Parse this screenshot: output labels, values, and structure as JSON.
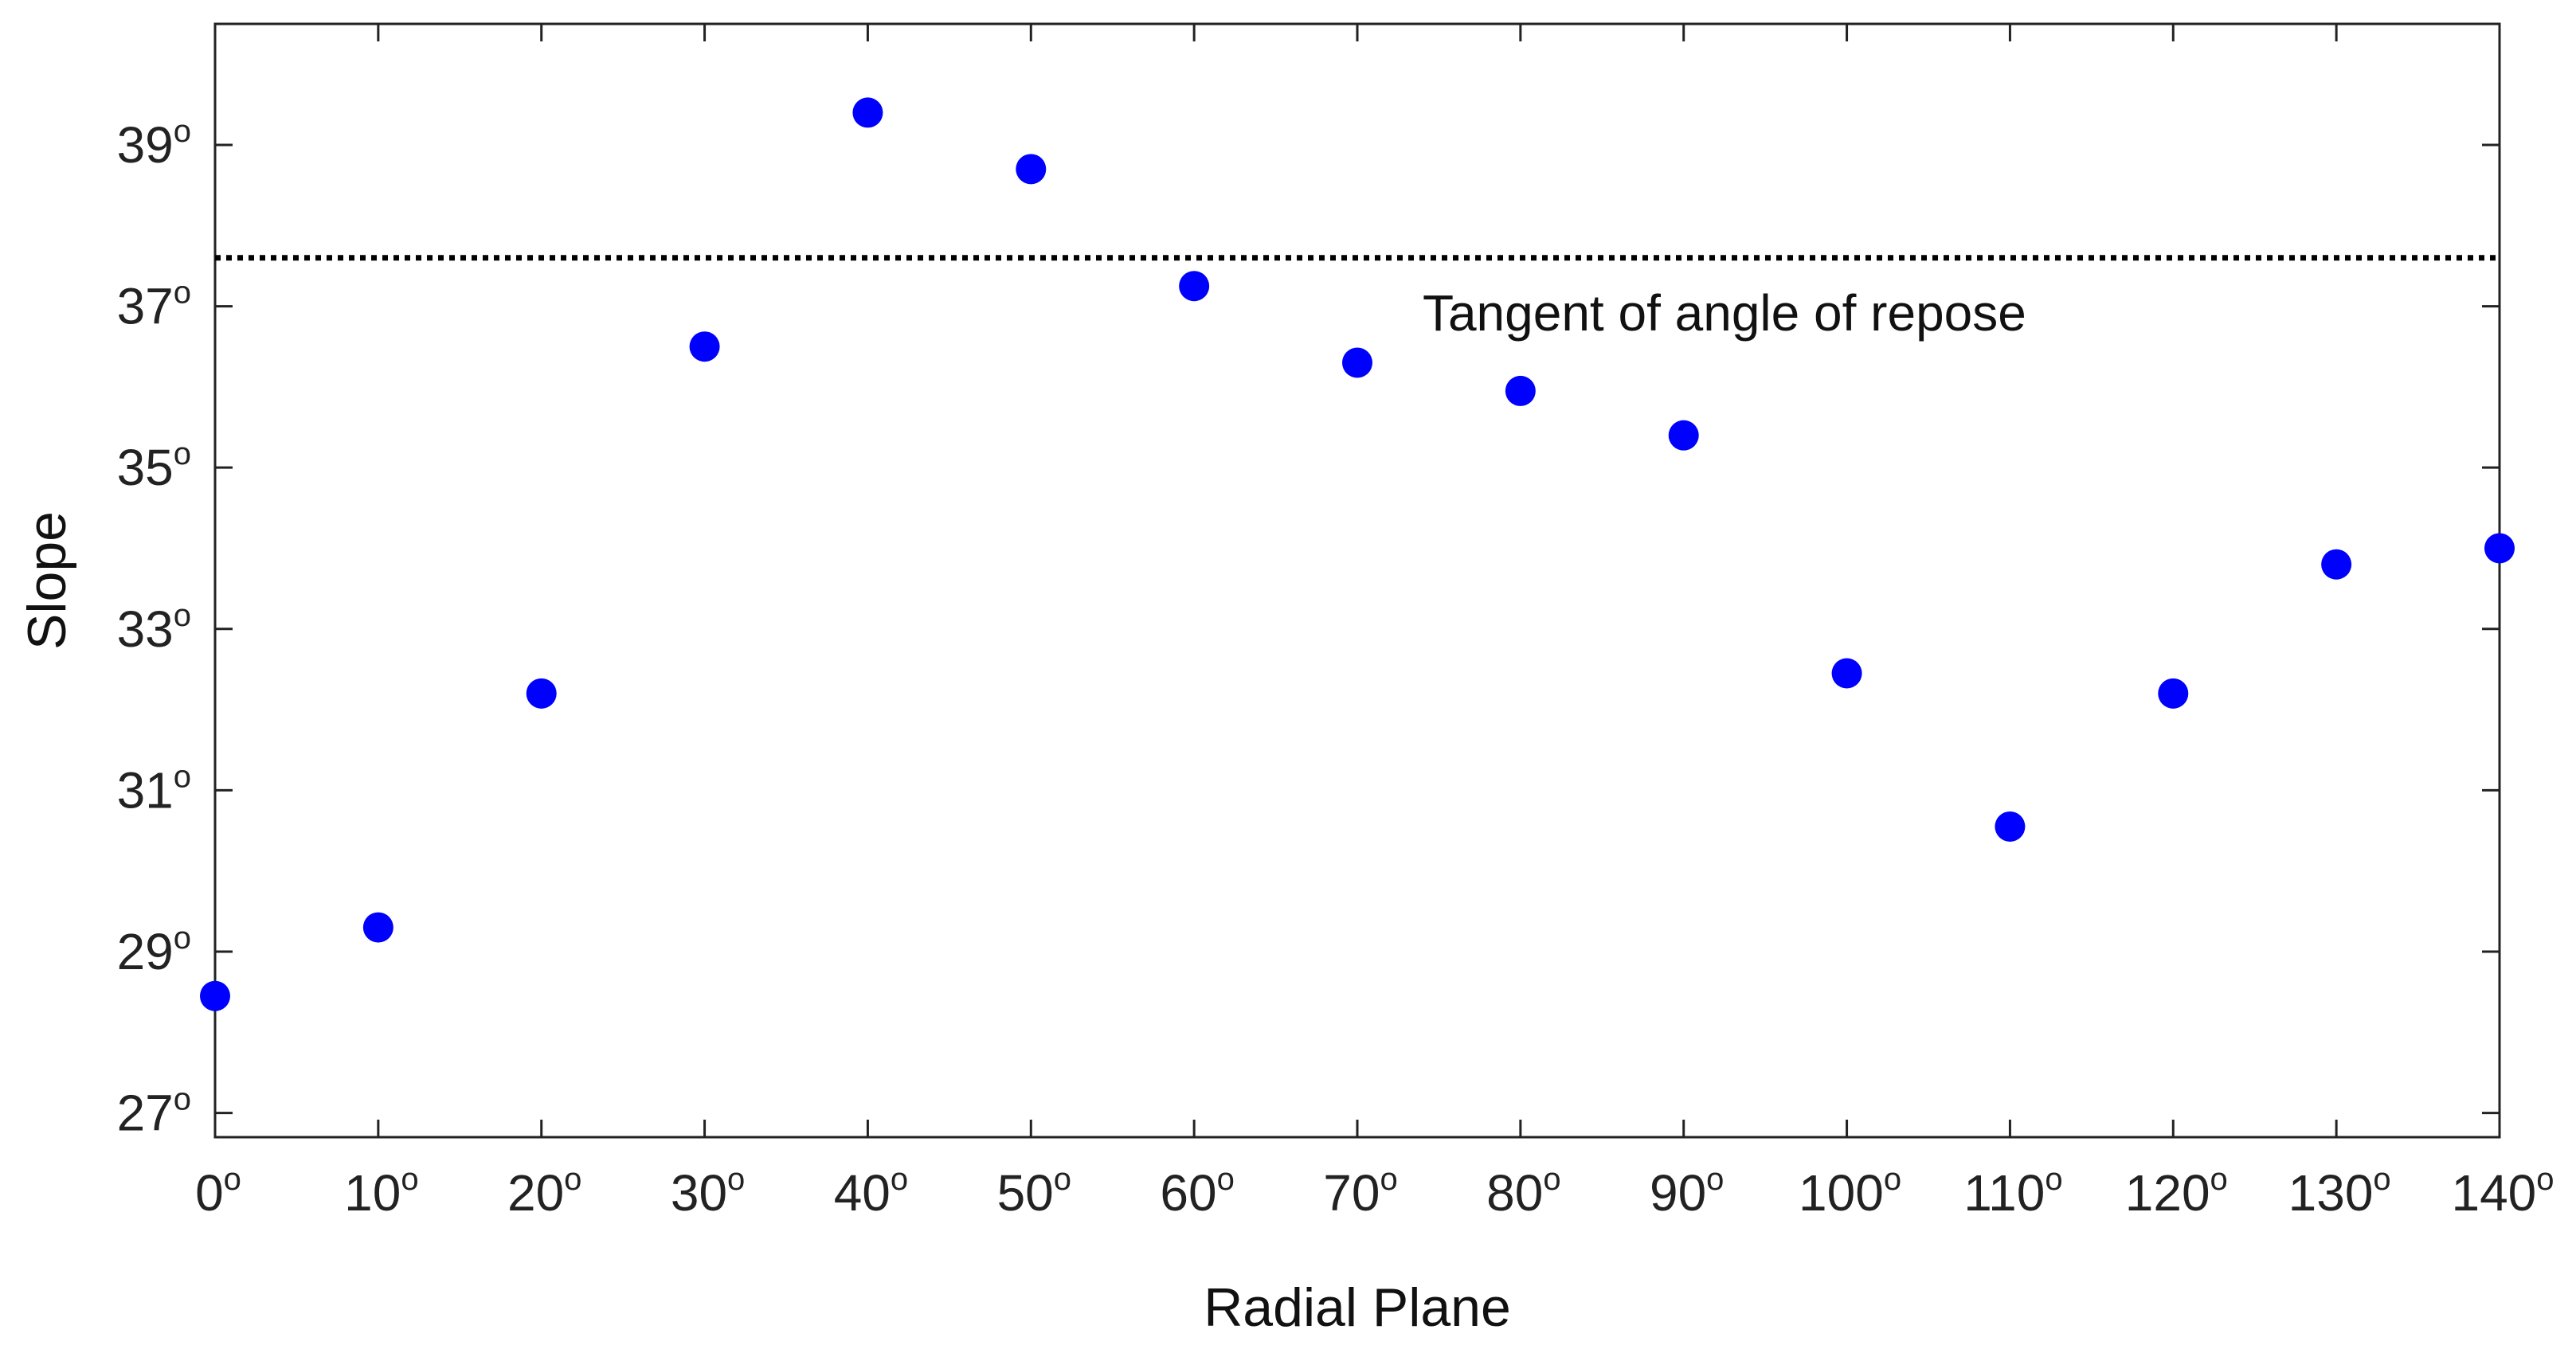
{
  "chart_data": {
    "type": "scatter",
    "xlabel": "Radial Plane",
    "ylabel": "Slope",
    "x_ticks": [
      "0",
      "10",
      "20",
      "30",
      "40",
      "50",
      "60",
      "70",
      "80",
      "90",
      "100",
      "110",
      "120",
      "130",
      "140"
    ],
    "y_ticks": [
      "27",
      "29",
      "31",
      "33",
      "35",
      "37",
      "39"
    ],
    "degree_symbol": "o",
    "xlim": [
      0,
      140
    ],
    "ylim": [
      26.7,
      40.5
    ],
    "grid": false,
    "marker_color": "#0000ff",
    "series": [
      {
        "x": [
          0,
          10,
          20,
          30,
          40,
          50,
          60,
          70,
          80,
          90,
          100,
          110,
          120,
          130,
          140
        ],
        "y": [
          28.45,
          29.3,
          32.2,
          36.5,
          39.4,
          38.7,
          37.25,
          36.3,
          35.95,
          35.4,
          32.45,
          30.55,
          32.2,
          33.8,
          34.0
        ]
      }
    ],
    "reference_line": {
      "y": 37.6,
      "style": "dotted",
      "color": "#000000",
      "label": "Tangent of angle of repose",
      "label_x": 74,
      "label_y": 36.7
    }
  }
}
